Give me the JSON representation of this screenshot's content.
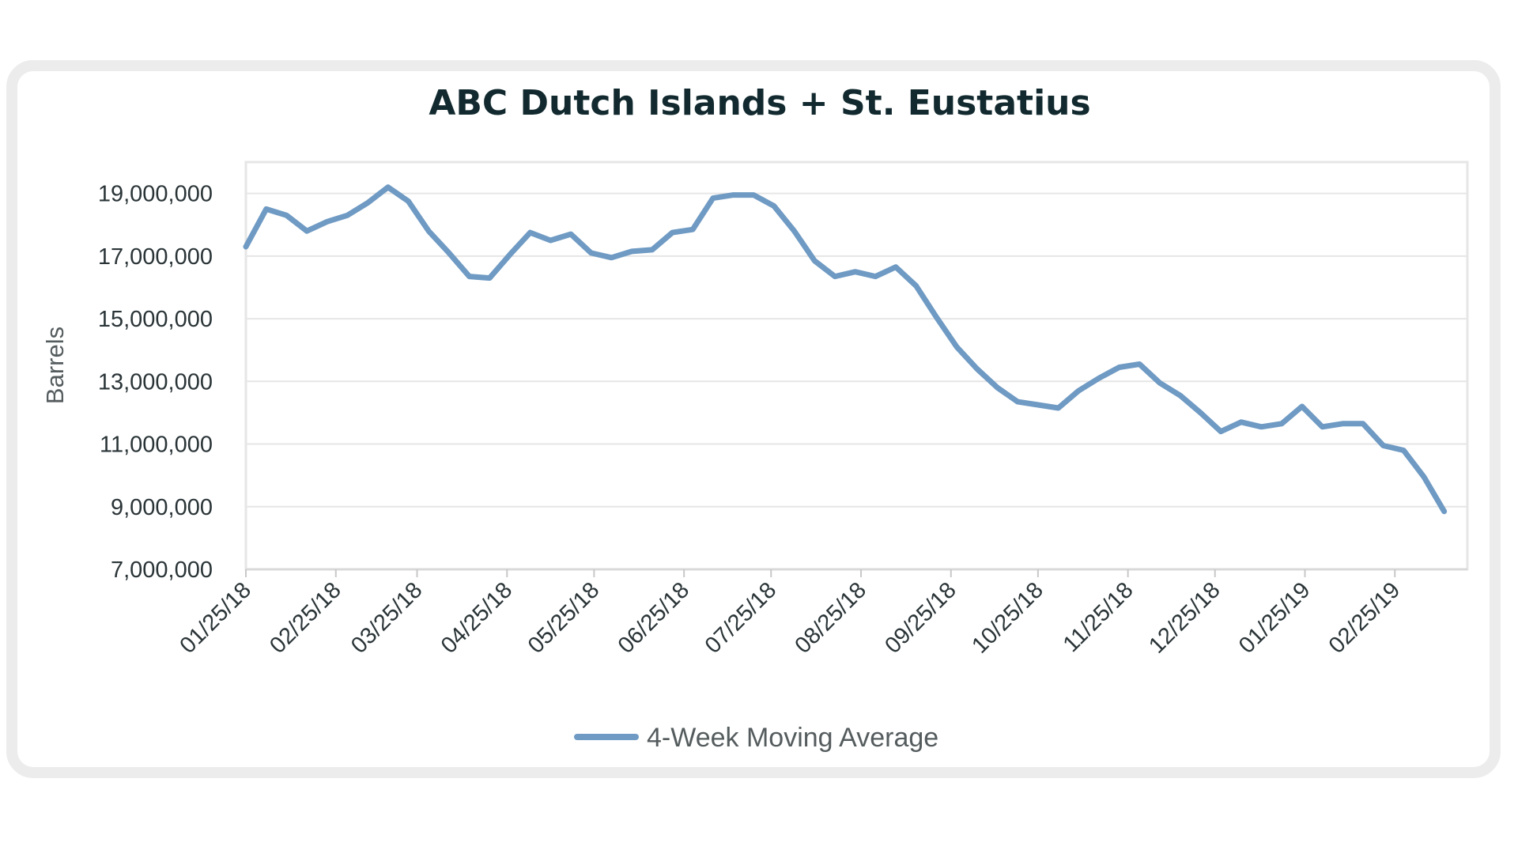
{
  "chart_data": {
    "type": "line",
    "title": "ABC Dutch Islands + St. Eustatius",
    "xlabel": "",
    "ylabel": "Barrels",
    "ylim": [
      7000000,
      20000000
    ],
    "yticks": [
      7000000,
      9000000,
      11000000,
      13000000,
      15000000,
      17000000,
      19000000
    ],
    "ytick_labels": [
      "7,000,000",
      "9,000,000",
      "11,000,000",
      "13,000,000",
      "15,000,000",
      "17,000,000",
      "19,000,000"
    ],
    "x_range": [
      "2018-01-25",
      "2019-03-22"
    ],
    "xtick_dates": [
      "2018-01-25",
      "2018-02-25",
      "2018-03-25",
      "2018-04-25",
      "2018-05-25",
      "2018-06-25",
      "2018-07-25",
      "2018-08-25",
      "2018-09-25",
      "2018-10-25",
      "2018-11-25",
      "2018-12-25",
      "2019-01-25",
      "2019-02-25"
    ],
    "xtick_labels": [
      "01/25/18",
      "02/25/18",
      "03/25/18",
      "04/25/18",
      "05/25/18",
      "06/25/18",
      "07/25/18",
      "08/25/18",
      "09/25/18",
      "10/25/18",
      "11/25/18",
      "12/25/18",
      "01/25/19",
      "02/25/19"
    ],
    "grid": true,
    "legend": "bottom-center",
    "series": [
      {
        "name": "4-Week Moving Average",
        "color": "#6f9ac3",
        "points": [
          [
            "2018-01-25",
            17300000
          ],
          [
            "2018-02-01",
            18500000
          ],
          [
            "2018-02-08",
            18300000
          ],
          [
            "2018-02-15",
            17800000
          ],
          [
            "2018-02-22",
            18100000
          ],
          [
            "2018-03-01",
            18300000
          ],
          [
            "2018-03-08",
            18700000
          ],
          [
            "2018-03-15",
            19200000
          ],
          [
            "2018-03-22",
            18750000
          ],
          [
            "2018-03-29",
            17800000
          ],
          [
            "2018-04-05",
            17100000
          ],
          [
            "2018-04-12",
            16350000
          ],
          [
            "2018-04-19",
            16300000
          ],
          [
            "2018-04-26",
            17050000
          ],
          [
            "2018-05-03",
            17750000
          ],
          [
            "2018-05-10",
            17500000
          ],
          [
            "2018-05-17",
            17700000
          ],
          [
            "2018-05-24",
            17100000
          ],
          [
            "2018-05-31",
            16950000
          ],
          [
            "2018-06-07",
            17150000
          ],
          [
            "2018-06-14",
            17200000
          ],
          [
            "2018-06-21",
            17750000
          ],
          [
            "2018-06-28",
            17850000
          ],
          [
            "2018-07-05",
            18850000
          ],
          [
            "2018-07-12",
            18950000
          ],
          [
            "2018-07-19",
            18950000
          ],
          [
            "2018-07-26",
            18600000
          ],
          [
            "2018-08-02",
            17800000
          ],
          [
            "2018-08-09",
            16850000
          ],
          [
            "2018-08-16",
            16350000
          ],
          [
            "2018-08-23",
            16500000
          ],
          [
            "2018-08-30",
            16350000
          ],
          [
            "2018-09-06",
            16650000
          ],
          [
            "2018-09-13",
            16050000
          ],
          [
            "2018-09-20",
            15050000
          ],
          [
            "2018-09-27",
            14100000
          ],
          [
            "2018-10-04",
            13400000
          ],
          [
            "2018-10-11",
            12800000
          ],
          [
            "2018-10-18",
            12350000
          ],
          [
            "2018-10-25",
            12250000
          ],
          [
            "2018-11-01",
            12150000
          ],
          [
            "2018-11-08",
            12700000
          ],
          [
            "2018-11-15",
            13100000
          ],
          [
            "2018-11-22",
            13450000
          ],
          [
            "2018-11-29",
            13550000
          ],
          [
            "2018-12-06",
            12950000
          ],
          [
            "2018-12-13",
            12550000
          ],
          [
            "2018-12-20",
            12000000
          ],
          [
            "2018-12-27",
            11400000
          ],
          [
            "2019-01-03",
            11700000
          ],
          [
            "2019-01-10",
            11550000
          ],
          [
            "2019-01-17",
            11650000
          ],
          [
            "2019-01-24",
            12200000
          ],
          [
            "2019-01-31",
            11550000
          ],
          [
            "2019-02-07",
            11650000
          ],
          [
            "2019-02-14",
            11650000
          ],
          [
            "2019-02-21",
            10950000
          ],
          [
            "2019-02-28",
            10800000
          ],
          [
            "2019-03-07",
            9950000
          ],
          [
            "2019-03-14",
            8850000
          ]
        ]
      }
    ]
  }
}
